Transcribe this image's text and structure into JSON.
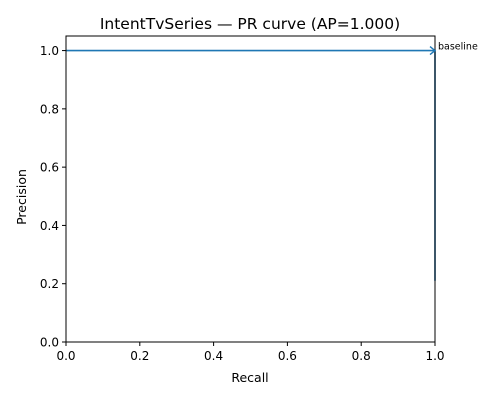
{
  "chart_data": {
    "type": "line",
    "title": "IntentTvSeries — PR curve (AP=1.000)",
    "xlabel": "Recall",
    "ylabel": "Precision",
    "xlim": [
      0,
      1
    ],
    "ylim": [
      0,
      1.05
    ],
    "xticks": [
      "0.0",
      "0.2",
      "0.4",
      "0.6",
      "0.8",
      "1.0"
    ],
    "yticks": [
      "0.0",
      "0.2",
      "0.4",
      "0.6",
      "0.8",
      "1.0"
    ],
    "grid": false,
    "series": [
      {
        "color": "#1f77b4",
        "x": [
          0.0,
          1.0,
          1.0
        ],
        "y": [
          1.0,
          1.0,
          0.21
        ]
      }
    ],
    "annotations": [
      {
        "text": "baseline",
        "x": 1.0,
        "y": 1.0
      }
    ]
  }
}
